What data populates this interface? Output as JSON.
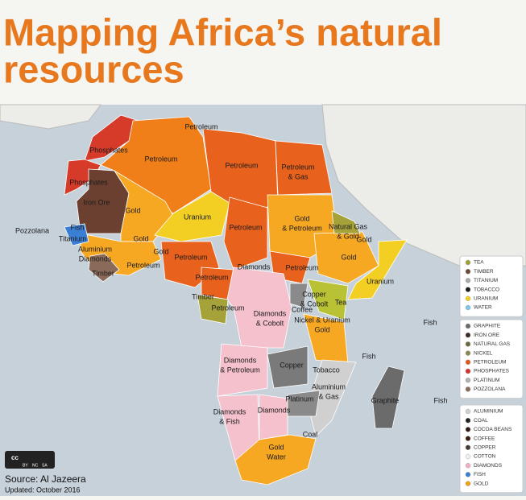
{
  "header": {
    "title": [
      "Mapping Africa’s natural",
      "resources"
    ]
  },
  "labels": [
    [
      "Petroleum"
    ],
    [
      "Phosphates"
    ],
    [
      "Petroleum"
    ],
    [
      "Petroleum"
    ],
    [
      "Petroleum",
      "& Gas"
    ],
    [
      "Phosphates"
    ],
    [
      "Iron Ore"
    ],
    [
      "Gold"
    ],
    [
      "Uranium"
    ],
    [
      "Gold",
      "& Petroleum"
    ],
    [
      "Natural Gas",
      "& Gold"
    ],
    [
      "Gold"
    ],
    [
      "Pozzolana"
    ],
    [
      "Fish"
    ],
    [
      "Titanium"
    ],
    [
      "Gold"
    ],
    [
      "Petroleum"
    ],
    [
      "Aluminium",
      "Diamonds"
    ],
    [
      "Gold"
    ],
    [
      "Petroleum"
    ],
    [
      "Petroleum"
    ],
    [
      "Gold"
    ],
    [
      "Diamonds"
    ],
    [
      "Petroleum"
    ],
    [
      "Timber"
    ],
    [
      "Petroleum"
    ],
    [
      "Uranium"
    ],
    [
      "Copper",
      "& Cobolt"
    ],
    [
      "Coffee"
    ],
    [
      "Tea"
    ],
    [
      "Timber"
    ],
    [
      "Petroleum"
    ],
    [
      "Diamonds",
      "& Cobolt"
    ],
    [
      "Nickel & Uranium",
      "Gold"
    ],
    [
      "Fish"
    ],
    [
      "Fish"
    ],
    [
      "Diamonds",
      "& Petroleum"
    ],
    [
      "Copper"
    ],
    [
      "Tobacco"
    ],
    [
      "Aluminium",
      "& Gas"
    ],
    [
      "Platinum"
    ],
    [
      "Graphite"
    ],
    [
      "Fish"
    ],
    [
      "Diamonds",
      "& Fish"
    ],
    [
      "Diamonds"
    ],
    [
      "Coal"
    ],
    [
      "Gold",
      "Water"
    ]
  ],
  "legend": [
    [
      {
        "label": "TEA",
        "color": "#a0a032"
      },
      {
        "label": "TIMBER",
        "color": "#6b4a3a"
      },
      {
        "label": "TITANIUM",
        "color": "#a8a8a8"
      },
      {
        "label": "TOBACCO",
        "color": "#1a1a1a"
      },
      {
        "label": "URANIUM",
        "color": "#f0d020"
      },
      {
        "label": "WATER",
        "color": "#7dc8e8"
      }
    ],
    [
      {
        "label": "GRAPHITE",
        "color": "#6b6b6b"
      },
      {
        "label": "IRON ORE",
        "color": "#3a2a22"
      },
      {
        "label": "NATURAL GAS",
        "color": "#6b6b3a"
      },
      {
        "label": "NICKEL",
        "color": "#8a8a50"
      },
      {
        "label": "PETROLEUM",
        "color": "#e05a1a"
      },
      {
        "label": "PHOSPHATES",
        "color": "#d42e2e"
      },
      {
        "label": "PLATINUM",
        "color": "#b0b0b0"
      },
      {
        "label": "POZZOLANA",
        "color": "#8a6b5a"
      }
    ],
    [
      {
        "label": "ALUMINIUM",
        "color": "#d0d0d0"
      },
      {
        "label": "COAL",
        "color": "#222222"
      },
      {
        "label": "COCOA BEANS",
        "color": "#2a1a12"
      },
      {
        "label": "COFFEE",
        "color": "#3a1a0a"
      },
      {
        "label": "COPPER",
        "color": "#4a3a35"
      },
      {
        "label": "COTTON",
        "color": "#f0f0f0"
      },
      {
        "label": "DIAMONDS",
        "color": "#f0b0c0"
      },
      {
        "label": "FISH",
        "color": "#3b7fd4"
      },
      {
        "label": "GOLD",
        "color": "#f2a018"
      }
    ]
  ],
  "footer": {
    "badge": [
      "BY",
      "NC",
      "SA"
    ],
    "source": "Source: Al Jazeera",
    "updated": "Updated: October 2016"
  }
}
